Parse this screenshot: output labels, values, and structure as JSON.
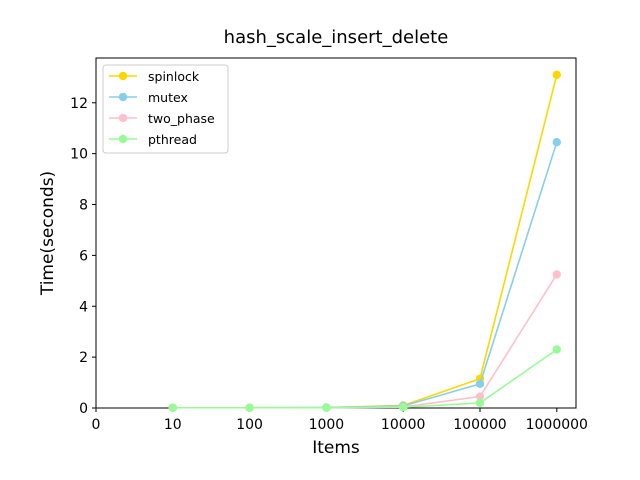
{
  "chart_data": {
    "type": "line",
    "title": "hash_scale_insert_delete",
    "xlabel": "Items",
    "ylabel": "Time(seconds)",
    "categories": [
      "10",
      "100",
      "1000",
      "10000",
      "100000",
      "1000000"
    ],
    "x_ticks": [
      "0",
      "10",
      "100",
      "1000",
      "10000",
      "100000",
      "1000000"
    ],
    "y_ticks": [
      "0",
      "2",
      "4",
      "6",
      "8",
      "10",
      "12"
    ],
    "ylim": [
      0,
      13.76
    ],
    "x_range": [
      0,
      6.25
    ],
    "grid": false,
    "legend_position": "top-left",
    "series": [
      {
        "name": "spinlock",
        "color": "#ffd700",
        "values": [
          0.01,
          0.01,
          0.02,
          0.1,
          1.15,
          13.1
        ]
      },
      {
        "name": "mutex",
        "color": "#87ceeb",
        "values": [
          0.01,
          0.01,
          0.02,
          0.08,
          0.95,
          10.45
        ]
      },
      {
        "name": "two_phase",
        "color": "#ffc0cb",
        "values": [
          0.01,
          0.01,
          0.01,
          0.04,
          0.45,
          5.25
        ]
      },
      {
        "name": "pthread",
        "color": "#98fb98",
        "values": [
          0.01,
          0.01,
          0.01,
          0.03,
          0.2,
          2.3
        ]
      }
    ]
  }
}
